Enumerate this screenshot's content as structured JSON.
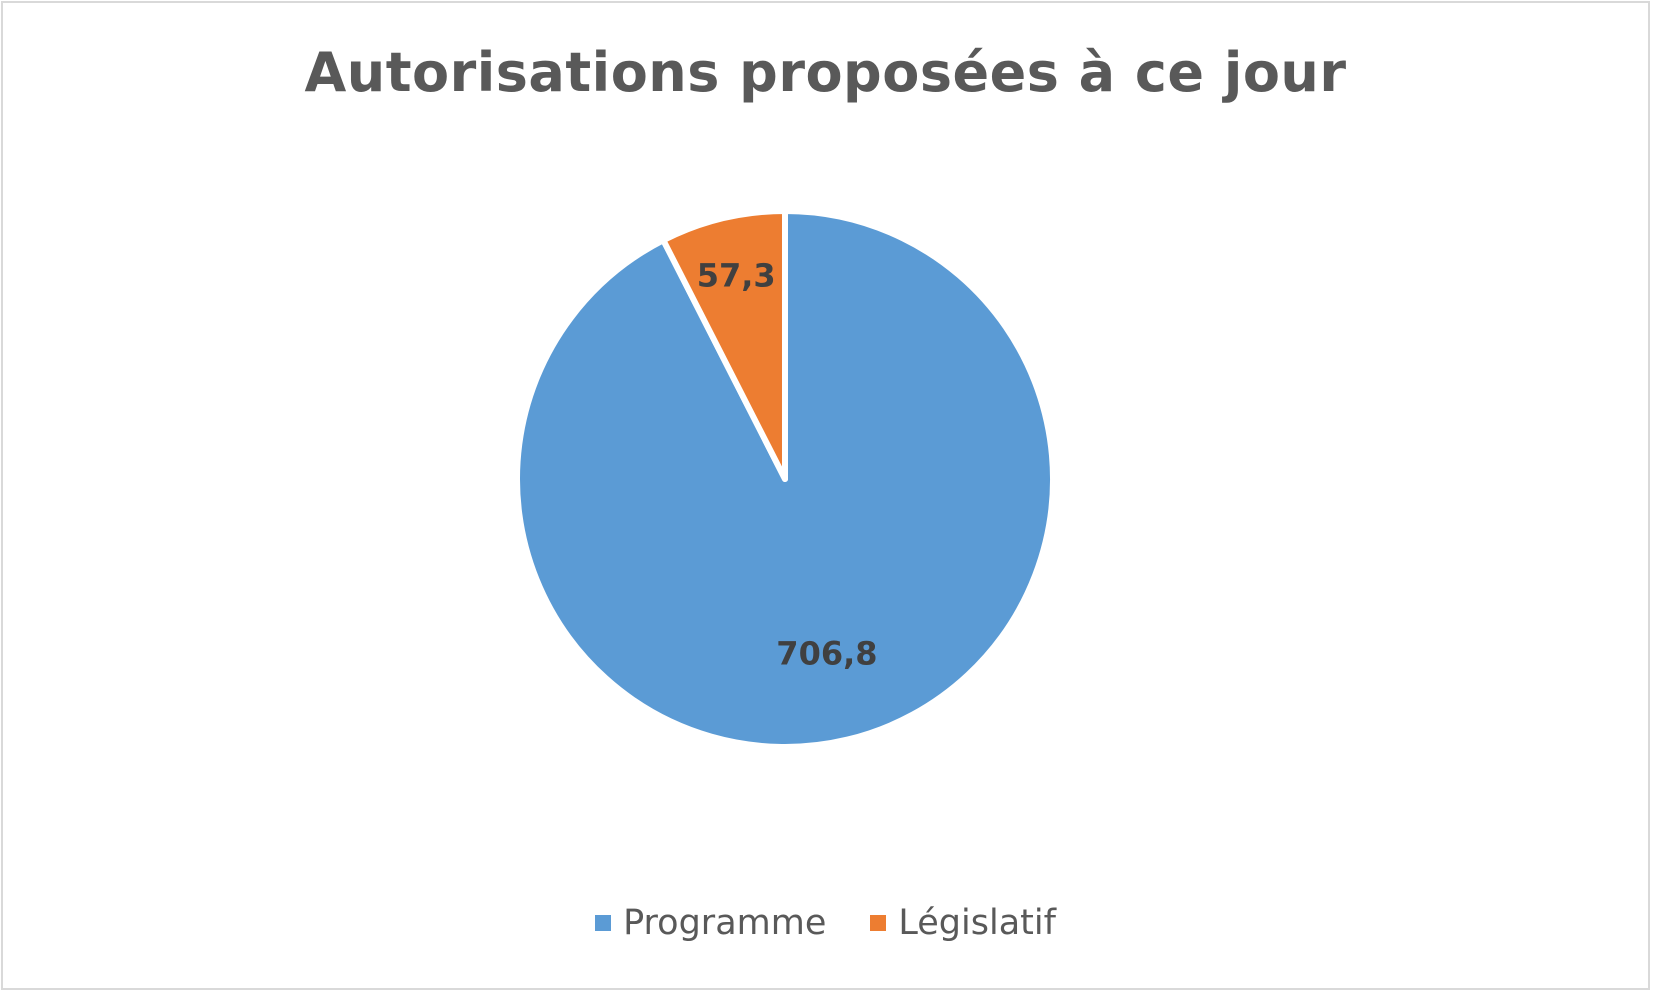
{
  "chart_data": {
    "type": "pie",
    "title": "Autorisations proposées à ce jour",
    "series": [
      {
        "name": "",
        "categories": [
          "Programme",
          "Législatif"
        ],
        "values": [
          706.8,
          57.3
        ],
        "value_labels": [
          "706,8",
          "57,3"
        ],
        "colors": [
          "#5b9bd5",
          "#ed7d31"
        ]
      }
    ],
    "legend": {
      "position": "bottom",
      "entries": [
        "Programme",
        "Législatif"
      ]
    }
  }
}
